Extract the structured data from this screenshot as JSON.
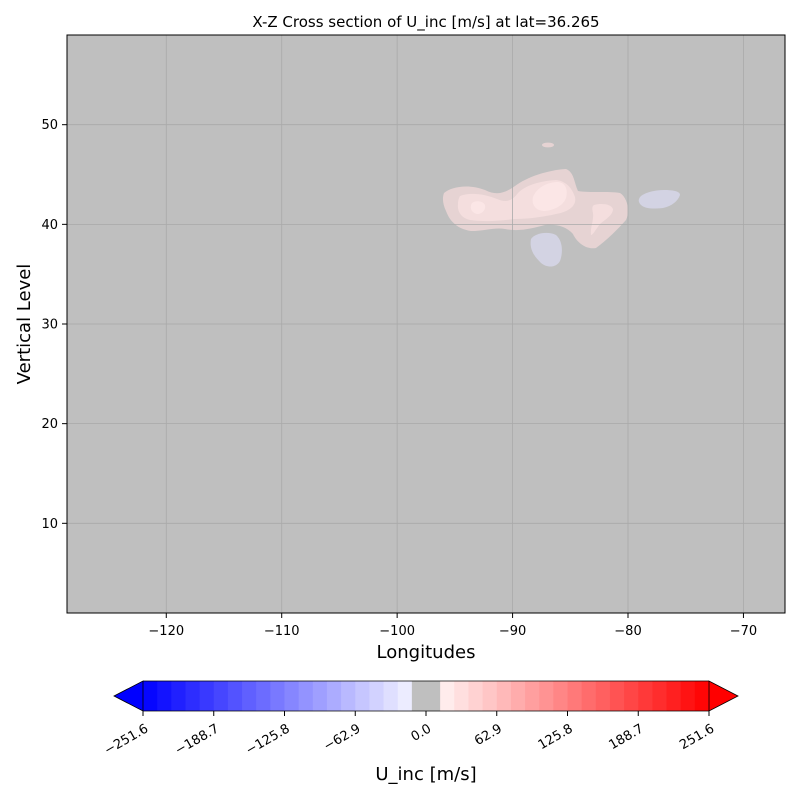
{
  "chart_data": {
    "type": "heatmap",
    "title": "X-Z Cross section of U_inc [m/s]  at lat=36.265",
    "xlabel": "Longitudes",
    "ylabel": "Vertical Level",
    "xlim": [
      -128.6,
      -66.4
    ],
    "ylim": [
      1,
      59
    ],
    "x_ticks": [
      -120,
      -110,
      -100,
      -90,
      -80,
      -70
    ],
    "x_tick_labels": [
      "−120",
      "−110",
      "−100",
      "−90",
      "−80",
      "−70"
    ],
    "y_ticks": [
      10,
      20,
      30,
      40,
      50
    ],
    "y_tick_labels": [
      "10",
      "20",
      "30",
      "40",
      "50"
    ],
    "grid": true,
    "background_value": 0.0,
    "background_color": "#bfbfbf",
    "features": [
      {
        "kind": "positive",
        "level_color": "#e6d3d3",
        "center_lon": -86.0,
        "center_lev": 41.5,
        "note_value_range": [
          0,
          31.45
        ]
      },
      {
        "kind": "positive",
        "level_color": "#f4dede",
        "center_lon": -88.0,
        "center_lev": 42.3,
        "note_value_range": [
          31.45,
          62.9
        ]
      },
      {
        "kind": "positive",
        "level_color": "#fbe6e6",
        "center_lon": -87.0,
        "center_lev": 43.0,
        "note_value_range": [
          62.9,
          94.35
        ]
      },
      {
        "kind": "negative",
        "level_color": "#d3d3e3",
        "center_lon": -87.8,
        "center_lev": 37.5,
        "note_value_range": [
          -31.45,
          0
        ]
      },
      {
        "kind": "negative",
        "level_color": "#d3d3e3",
        "center_lon": -76.0,
        "center_lev": 42.6,
        "note_value_range": [
          -31.45,
          0
        ]
      },
      {
        "kind": "positive",
        "level_color": "#e6d3d3",
        "center_lon": -87.7,
        "center_lev": 48.0,
        "note_value_range": [
          0,
          31.45
        ]
      }
    ],
    "colorbar": {
      "label": "U_inc [m/s]",
      "vmin": -251.6,
      "vmax": 251.6,
      "extend": "both",
      "tick_values": [
        -251.6,
        -188.7,
        -125.8,
        -62.9,
        0.0,
        62.9,
        125.8,
        188.7,
        251.6
      ],
      "tick_labels": [
        "−251.6",
        "−188.7",
        "−125.8",
        "−62.9",
        "0.0",
        "62.9",
        "125.8",
        "188.7",
        "251.6"
      ],
      "levels": 40,
      "colormap": "bwr",
      "min_color": "#0000ff",
      "mid_color": "#bfbfbf",
      "max_color": "#ff0000"
    }
  }
}
